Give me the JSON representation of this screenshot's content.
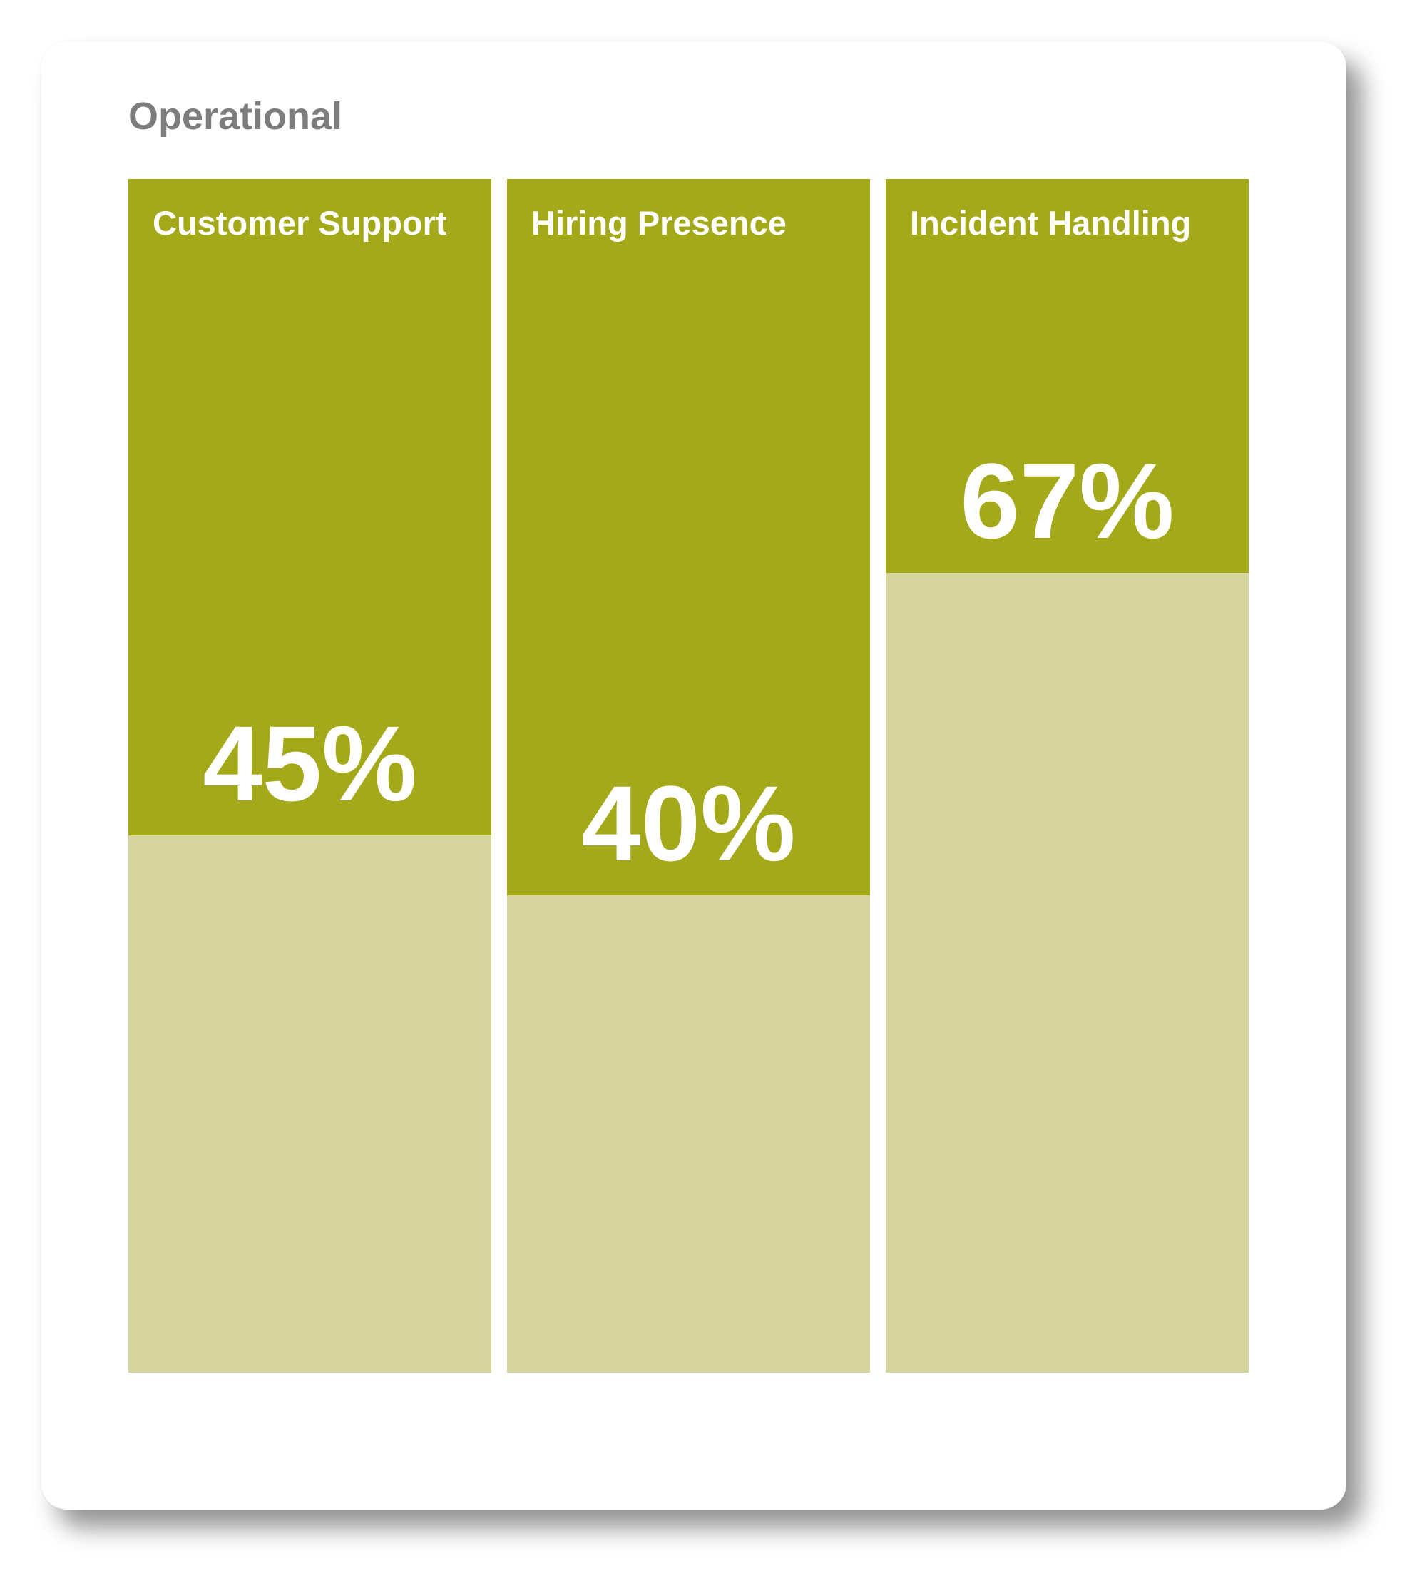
{
  "chart_data": {
    "type": "bar",
    "title": "Operational",
    "categories": [
      "Customer Support",
      "Hiring Presence",
      "Incident Handling"
    ],
    "values": [
      45,
      40,
      67
    ],
    "value_labels": [
      "45%",
      "40%",
      "67%"
    ],
    "ylim": [
      0,
      100
    ],
    "unit": "%",
    "colors": {
      "accent": "#a3a919",
      "fill": "#d4d49c"
    }
  }
}
